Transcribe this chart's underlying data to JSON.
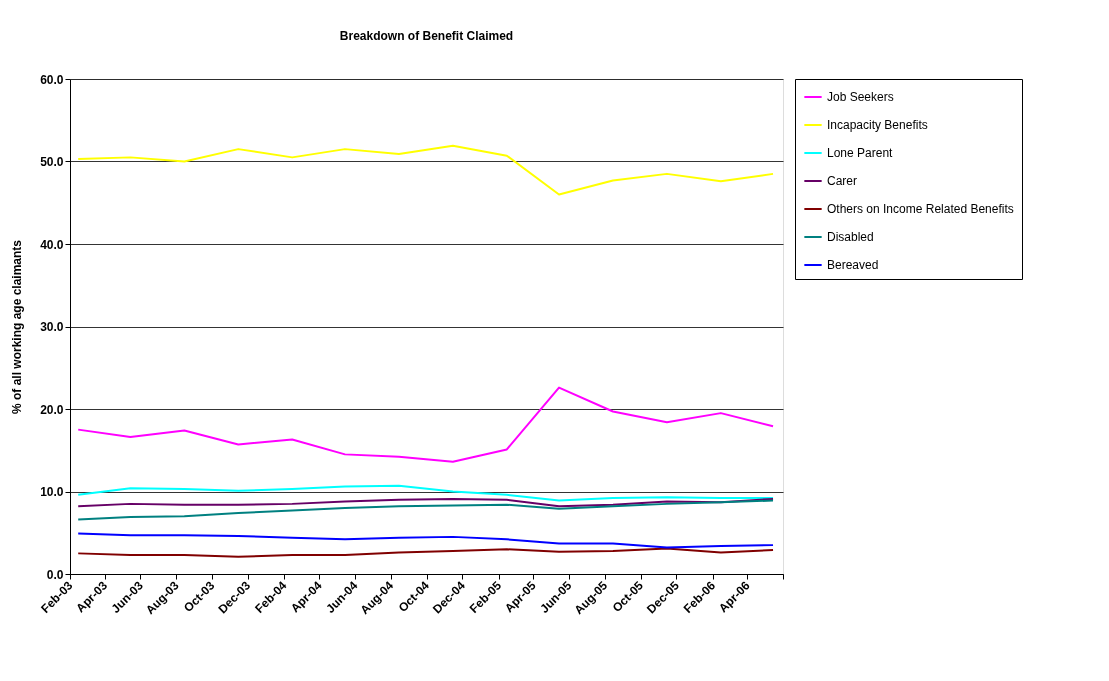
{
  "chart_data": {
    "type": "line",
    "title": "Breakdown of Benefit Claimed",
    "ylabel": "% of all working age claimants",
    "x": [
      "2003-02-15",
      "2003-05-15",
      "2003-08-15",
      "2003-11-15",
      "2004-02-15",
      "2004-05-15",
      "2004-08-15",
      "2004-11-15",
      "2005-02-15",
      "2005-05-15",
      "2005-08-15",
      "2005-11-15",
      "2006-02-15",
      "2006-05-15"
    ],
    "xlim": [
      "2003-02-01",
      "2006-06-01"
    ],
    "xticks": [
      {
        "value": "2003-02-01",
        "label": "Feb-03"
      },
      {
        "value": "2003-04-01",
        "label": "Apr-03"
      },
      {
        "value": "2003-06-01",
        "label": "Jun-03"
      },
      {
        "value": "2003-08-01",
        "label": "Aug-03"
      },
      {
        "value": "2003-10-01",
        "label": "Oct-03"
      },
      {
        "value": "2003-12-01",
        "label": "Dec-03"
      },
      {
        "value": "2004-02-01",
        "label": "Feb-04"
      },
      {
        "value": "2004-04-01",
        "label": "Apr-04"
      },
      {
        "value": "2004-06-01",
        "label": "Jun-04"
      },
      {
        "value": "2004-08-01",
        "label": "Aug-04"
      },
      {
        "value": "2004-10-01",
        "label": "Oct-04"
      },
      {
        "value": "2004-12-01",
        "label": "Dec-04"
      },
      {
        "value": "2005-02-01",
        "label": "Feb-05"
      },
      {
        "value": "2005-04-01",
        "label": "Apr-05"
      },
      {
        "value": "2005-06-01",
        "label": "Jun-05"
      },
      {
        "value": "2005-08-01",
        "label": "Aug-05"
      },
      {
        "value": "2005-10-01",
        "label": "Oct-05"
      },
      {
        "value": "2005-12-01",
        "label": "Dec-05"
      },
      {
        "value": "2006-02-01",
        "label": "Feb-06"
      },
      {
        "value": "2006-04-01",
        "label": "Apr-06"
      },
      {
        "value": "2006-06-01",
        "label": null
      }
    ],
    "ylim": [
      0,
      60
    ],
    "yticks": [
      {
        "value": 0,
        "label": "0.0"
      },
      {
        "value": 10,
        "label": "10.0"
      },
      {
        "value": 20,
        "label": "20.0"
      },
      {
        "value": 30,
        "label": "30.0"
      },
      {
        "value": 40,
        "label": "40.0"
      },
      {
        "value": 50,
        "label": "50.0"
      },
      {
        "value": 60,
        "label": "60.0"
      }
    ],
    "grid": "y",
    "legend": "right",
    "marker": "none",
    "line_style": "solid",
    "series": [
      {
        "name": "Job Seekers",
        "color": "#ff00ff",
        "values": [
          17.5,
          16.6,
          17.4,
          15.7,
          16.3,
          14.5,
          14.2,
          13.6,
          15.1,
          22.6,
          19.7,
          18.4,
          19.5,
          17.9
        ]
      },
      {
        "name": "Incapacity Benefits",
        "color": "#ffff00",
        "values": [
          50.3,
          50.5,
          50.0,
          51.5,
          50.5,
          51.5,
          50.9,
          51.9,
          50.7,
          46.0,
          47.7,
          48.5,
          47.6,
          48.5
        ]
      },
      {
        "name": "Lone Parent",
        "color": "#00ffff",
        "values": [
          9.6,
          10.4,
          10.3,
          10.1,
          10.3,
          10.6,
          10.7,
          10.0,
          9.6,
          8.9,
          9.2,
          9.3,
          9.2,
          9.2
        ]
      },
      {
        "name": "Carer",
        "color": "#660066",
        "values": [
          8.2,
          8.5,
          8.4,
          8.4,
          8.5,
          8.8,
          9.0,
          9.1,
          9.0,
          8.2,
          8.4,
          8.8,
          8.7,
          9.1
        ]
      },
      {
        "name": "Others on Income Related Benefits",
        "color": "#800000",
        "values": [
          2.5,
          2.3,
          2.3,
          2.1,
          2.3,
          2.3,
          2.6,
          2.8,
          3.0,
          2.7,
          2.8,
          3.1,
          2.6,
          2.9
        ]
      },
      {
        "name": "Disabled",
        "color": "#008080",
        "values": [
          6.6,
          6.9,
          7.0,
          7.4,
          7.7,
          8.0,
          8.2,
          8.3,
          8.4,
          7.9,
          8.2,
          8.5,
          8.7,
          8.9
        ]
      },
      {
        "name": "Bereaved",
        "color": "#0000ff",
        "values": [
          4.9,
          4.7,
          4.7,
          4.6,
          4.4,
          4.2,
          4.4,
          4.5,
          4.2,
          3.7,
          3.7,
          3.2,
          3.4,
          3.5
        ]
      }
    ]
  }
}
